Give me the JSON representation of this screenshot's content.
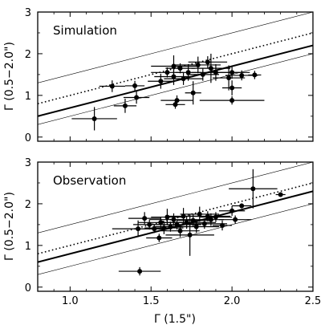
{
  "chart_data": [
    {
      "type": "scatter",
      "title": "Simulation",
      "xlabel": "",
      "ylabel": "Γ (0.5−2.0\")",
      "xlim": [
        0.8,
        2.5
      ],
      "ylim": [
        -0.1,
        3.0
      ],
      "x_ticks": [
        1.0,
        1.5,
        2.0,
        2.5
      ],
      "x_tick_labels": [
        "",
        "",
        "",
        ""
      ],
      "y_ticks": [
        0,
        1,
        2,
        3
      ],
      "y_tick_labels": [
        "0",
        "1",
        "2",
        "3"
      ],
      "show_grid": false,
      "lines": [
        {
          "style": "solid-thick",
          "slope": 1.0,
          "intercept": -0.3
        },
        {
          "style": "dotted",
          "slope": 1.0,
          "intercept": 0.0
        },
        {
          "style": "solid-thin",
          "slope": 1.0,
          "intercept": 0.5
        },
        {
          "style": "solid-thin",
          "slope": 1.0,
          "intercept": -0.5
        }
      ],
      "points": [
        {
          "x": 1.15,
          "y": 0.44,
          "xerr": 0.14,
          "yerr": 0.28
        },
        {
          "x": 1.26,
          "y": 1.22,
          "xerr": 0.08,
          "yerr": 0.14
        },
        {
          "x": 1.34,
          "y": 0.75,
          "xerr": 0.07,
          "yerr": 0.17
        },
        {
          "x": 1.4,
          "y": 1.23,
          "xerr": 0.06,
          "yerr": 0.12
        },
        {
          "x": 1.41,
          "y": 0.95,
          "xerr": 0.08,
          "yerr": 0.15
        },
        {
          "x": 1.56,
          "y": 1.34,
          "xerr": 0.08,
          "yerr": 0.18
        },
        {
          "x": 1.6,
          "y": 1.55,
          "xerr": 0.1,
          "yerr": 0.12
        },
        {
          "x": 1.64,
          "y": 1.7,
          "xerr": 0.14,
          "yerr": 0.26
        },
        {
          "x": 1.64,
          "y": 1.45,
          "xerr": 0.12,
          "yerr": 0.2
        },
        {
          "x": 1.66,
          "y": 0.88,
          "xerr": 0.1,
          "yerr": 0.12
        },
        {
          "x": 1.65,
          "y": 0.78,
          "xerr": 0.06,
          "yerr": 0.1
        },
        {
          "x": 1.68,
          "y": 1.65,
          "xerr": 0.09,
          "yerr": 0.12
        },
        {
          "x": 1.7,
          "y": 1.4,
          "xerr": 0.12,
          "yerr": 0.15
        },
        {
          "x": 1.73,
          "y": 1.55,
          "xerr": 0.08,
          "yerr": 0.2
        },
        {
          "x": 1.76,
          "y": 1.06,
          "xerr": 0.05,
          "yerr": 0.28
        },
        {
          "x": 1.79,
          "y": 1.73,
          "xerr": 0.14,
          "yerr": 0.2
        },
        {
          "x": 1.82,
          "y": 1.5,
          "xerr": 0.1,
          "yerr": 0.15
        },
        {
          "x": 1.85,
          "y": 1.8,
          "xerr": 0.12,
          "yerr": 0.14
        },
        {
          "x": 1.87,
          "y": 1.65,
          "xerr": 0.12,
          "yerr": 0.35
        },
        {
          "x": 1.9,
          "y": 1.55,
          "xerr": 0.15,
          "yerr": 0.2
        },
        {
          "x": 1.98,
          "y": 1.42,
          "xerr": 0.1,
          "yerr": 0.3
        },
        {
          "x": 2.0,
          "y": 1.18,
          "xerr": 0.06,
          "yerr": 0.18
        },
        {
          "x": 2.0,
          "y": 1.55,
          "xerr": 0.11,
          "yerr": 0.15
        },
        {
          "x": 2.0,
          "y": 0.88,
          "xerr": 0.2,
          "yerr": 0.1
        },
        {
          "x": 2.06,
          "y": 1.48,
          "xerr": 0.1,
          "yerr": 0.12
        },
        {
          "x": 2.14,
          "y": 1.49,
          "xerr": 0.04,
          "yerr": 0.1
        }
      ]
    },
    {
      "type": "scatter",
      "title": "Observation",
      "xlabel": "Γ (1.5\")",
      "ylabel": "Γ (0.5−2.0\")",
      "xlim": [
        0.8,
        2.5
      ],
      "ylim": [
        -0.1,
        3.0
      ],
      "x_ticks": [
        1.0,
        1.5,
        2.0,
        2.5
      ],
      "x_tick_labels": [
        "1.0",
        "1.5",
        "2.0",
        "2.5"
      ],
      "y_ticks": [
        0,
        1,
        2,
        3
      ],
      "y_tick_labels": [
        "0",
        "1",
        "2",
        "3"
      ],
      "show_grid": false,
      "lines": [
        {
          "style": "solid-thick",
          "slope": 1.0,
          "intercept": -0.2
        },
        {
          "style": "dotted",
          "slope": 1.0,
          "intercept": 0.0
        },
        {
          "style": "solid-thin",
          "slope": 1.0,
          "intercept": 0.5
        },
        {
          "style": "solid-thin",
          "slope": 1.0,
          "intercept": -0.5
        }
      ],
      "points": [
        {
          "x": 1.43,
          "y": 0.38,
          "xerr": 0.13,
          "yerr": 0.1
        },
        {
          "x": 1.42,
          "y": 1.4,
          "xerr": 0.16,
          "yerr": 0.2
        },
        {
          "x": 1.46,
          "y": 1.65,
          "xerr": 0.1,
          "yerr": 0.15
        },
        {
          "x": 1.49,
          "y": 1.5,
          "xerr": 0.1,
          "yerr": 0.12
        },
        {
          "x": 1.52,
          "y": 1.4,
          "xerr": 0.11,
          "yerr": 0.1
        },
        {
          "x": 1.55,
          "y": 1.18,
          "xerr": 0.08,
          "yerr": 0.1
        },
        {
          "x": 1.56,
          "y": 1.55,
          "xerr": 0.14,
          "yerr": 0.12
        },
        {
          "x": 1.58,
          "y": 1.42,
          "xerr": 0.12,
          "yerr": 0.15
        },
        {
          "x": 1.6,
          "y": 1.68,
          "xerr": 0.1,
          "yerr": 0.2
        },
        {
          "x": 1.62,
          "y": 1.45,
          "xerr": 0.11,
          "yerr": 0.12
        },
        {
          "x": 1.64,
          "y": 1.62,
          "xerr": 0.15,
          "yerr": 0.15
        },
        {
          "x": 1.66,
          "y": 1.5,
          "xerr": 0.15,
          "yerr": 0.12
        },
        {
          "x": 1.68,
          "y": 1.35,
          "xerr": 0.12,
          "yerr": 0.15
        },
        {
          "x": 1.7,
          "y": 1.7,
          "xerr": 0.1,
          "yerr": 0.2
        },
        {
          "x": 1.72,
          "y": 1.55,
          "xerr": 0.18,
          "yerr": 0.15
        },
        {
          "x": 1.74,
          "y": 1.25,
          "xerr": 0.15,
          "yerr": 0.5
        },
        {
          "x": 1.76,
          "y": 1.6,
          "xerr": 0.1,
          "yerr": 0.15
        },
        {
          "x": 1.78,
          "y": 1.45,
          "xerr": 0.14,
          "yerr": 0.15
        },
        {
          "x": 1.8,
          "y": 1.75,
          "xerr": 0.12,
          "yerr": 0.18
        },
        {
          "x": 1.83,
          "y": 1.52,
          "xerr": 0.14,
          "yerr": 0.12
        },
        {
          "x": 1.85,
          "y": 1.7,
          "xerr": 0.14,
          "yerr": 0.12
        },
        {
          "x": 1.87,
          "y": 1.62,
          "xerr": 0.08,
          "yerr": 0.15
        },
        {
          "x": 1.9,
          "y": 1.68,
          "xerr": 0.1,
          "yerr": 0.12
        },
        {
          "x": 1.94,
          "y": 1.48,
          "xerr": 0.06,
          "yerr": 0.12
        },
        {
          "x": 2.0,
          "y": 1.83,
          "xerr": 0.08,
          "yerr": 0.12
        },
        {
          "x": 2.02,
          "y": 1.62,
          "xerr": 0.1,
          "yerr": 0.1
        },
        {
          "x": 2.06,
          "y": 1.95,
          "xerr": 0.06,
          "yerr": 0.06
        },
        {
          "x": 2.13,
          "y": 2.36,
          "xerr": 0.15,
          "yerr": 0.47
        },
        {
          "x": 2.3,
          "y": 2.22,
          "xerr": 0.03,
          "yerr": 0.03
        }
      ]
    }
  ]
}
